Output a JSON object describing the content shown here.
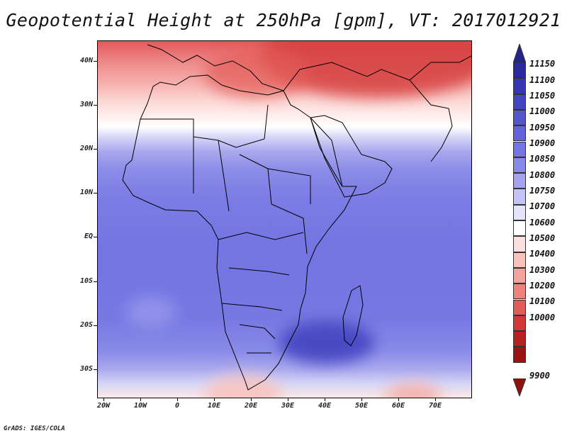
{
  "map": {
    "title": "Geopotential Height at 250hPa [gpm], VT: 2017012921",
    "variable": "Geopotential Height",
    "level": "250hPa",
    "units": "gpm",
    "valid_time": "2017012921",
    "region": "Africa and Middle East",
    "lat_labels": [
      "40N",
      "30N",
      "20N",
      "10N",
      "EQ",
      "10S",
      "20S",
      "30S"
    ],
    "lon_labels": [
      "20W",
      "10W",
      "0",
      "10E",
      "20E",
      "30E",
      "40E",
      "50E",
      "60E",
      "70E"
    ],
    "credit": "GrADS: IGES/COLA"
  },
  "colorbar": {
    "levels": [
      "11150",
      "11100",
      "11050",
      "11000",
      "10950",
      "10900",
      "10850",
      "10800",
      "10750",
      "10700",
      "10600",
      "10500",
      "10400",
      "10300",
      "10200",
      "10100",
      "10000",
      "9900"
    ],
    "colors": [
      "#2a2a9e",
      "#3636b0",
      "#4444c0",
      "#5555cc",
      "#6464d8",
      "#7474e2",
      "#8888e8",
      "#a3a3ef",
      "#c3c3f5",
      "#e4e4fa",
      "#ffffff",
      "#fde0dd",
      "#f9c2bd",
      "#f4a29c",
      "#ee837c",
      "#e35c58",
      "#d23838",
      "#b52222",
      "#991414"
    ],
    "top_arrow_color": "#222288",
    "bottom_arrow_color": "#8e1010"
  }
}
